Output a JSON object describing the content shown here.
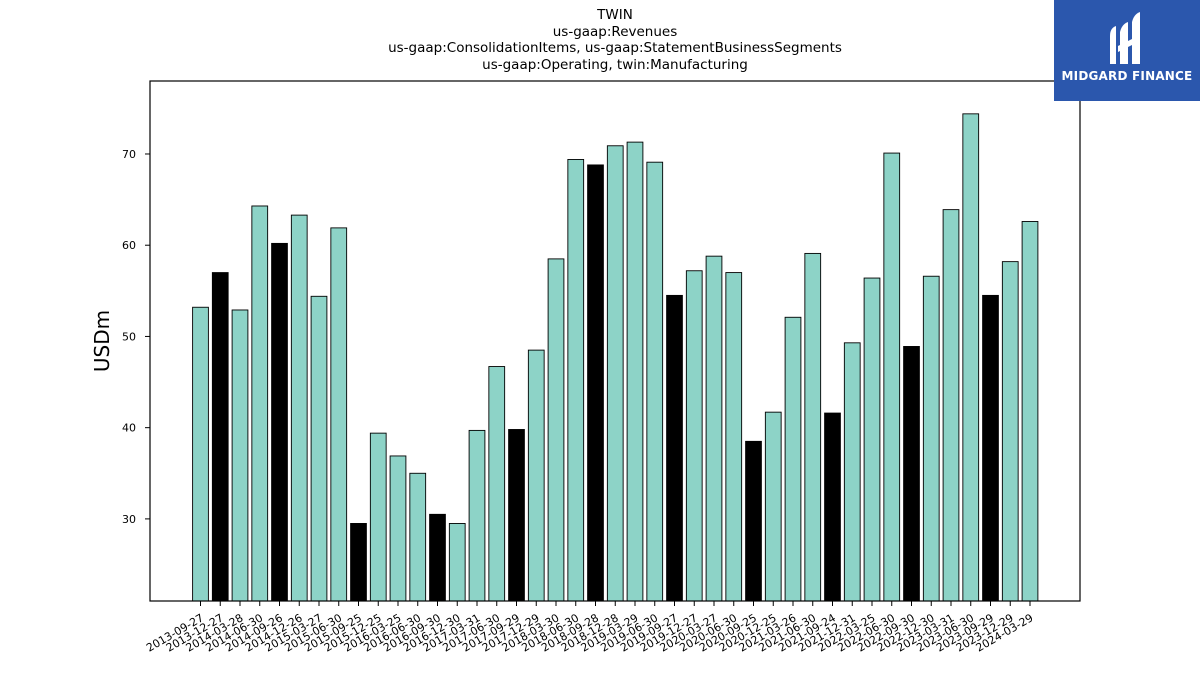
{
  "title_lines": [
    "TWIN",
    "us-gaap:Revenues",
    "us-gaap:ConsolidationItems, us-gaap:StatementBusinessSegments",
    "us-gaap:Operating, twin:Manufacturing"
  ],
  "logo": {
    "text": "MIDGARD FINANCE",
    "icon": "midgard-logo-icon",
    "background": "#2b57ad"
  },
  "colors": {
    "bar": "#8dd3c7",
    "highlight_bar": "#000000",
    "edge": "#000000"
  },
  "chart_data": {
    "type": "bar",
    "ylabel": "USDm",
    "xlabel": "",
    "ylim": [
      21,
      78
    ],
    "yticks": [
      30,
      40,
      50,
      60,
      70
    ],
    "grid": false,
    "categories": [
      "2013-09-27",
      "2013-12-27",
      "2014-03-28",
      "2014-06-30",
      "2014-09-26",
      "2014-12-26",
      "2015-03-27",
      "2015-06-30",
      "2015-09-25",
      "2015-12-25",
      "2016-03-25",
      "2016-06-30",
      "2016-09-30",
      "2016-12-30",
      "2017-03-31",
      "2017-06-30",
      "2017-09-29",
      "2017-12-29",
      "2018-03-30",
      "2018-06-30",
      "2018-09-28",
      "2018-12-28",
      "2019-03-29",
      "2019-06-30",
      "2019-09-27",
      "2019-12-27",
      "2020-03-27",
      "2020-06-30",
      "2020-09-25",
      "2020-12-25",
      "2021-03-26",
      "2021-06-30",
      "2021-09-24",
      "2021-12-31",
      "2022-03-25",
      "2022-06-30",
      "2022-09-30",
      "2022-12-30",
      "2023-03-31",
      "2023-06-30",
      "2023-09-29",
      "2023-12-29",
      "2024-03-29"
    ],
    "values": [
      53.2,
      57.0,
      52.9,
      64.3,
      60.2,
      63.3,
      54.4,
      61.9,
      29.5,
      39.4,
      36.9,
      35.0,
      30.5,
      29.5,
      39.7,
      46.7,
      39.8,
      48.5,
      58.5,
      69.4,
      68.8,
      70.9,
      71.3,
      69.1,
      54.5,
      57.2,
      58.8,
      57.0,
      38.5,
      41.7,
      52.1,
      59.1,
      41.6,
      49.3,
      56.4,
      70.1,
      48.9,
      56.6,
      63.9,
      74.4,
      54.5,
      58.2,
      62.6
    ],
    "highlighted": [
      "2013-12-27",
      "2014-09-26",
      "2015-09-25",
      "2016-09-30",
      "2017-09-29",
      "2018-09-28",
      "2019-09-27",
      "2020-09-25",
      "2021-09-24",
      "2022-09-30",
      "2023-09-29"
    ]
  }
}
